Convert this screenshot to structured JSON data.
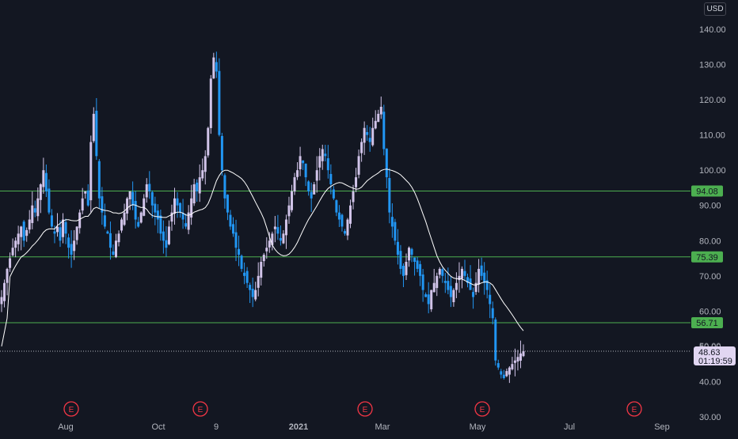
{
  "currency": "USD",
  "chart_data": {
    "type": "candlestick",
    "currency": "USD",
    "y_axis": {
      "min": 30,
      "max": 145,
      "ticks": [
        "140.00",
        "130.00",
        "120.00",
        "110.00",
        "100.00",
        "90.00",
        "80.00",
        "70.00",
        "60.00",
        "50.00",
        "40.00",
        "30.00"
      ]
    },
    "x_axis": {
      "ticks": [
        {
          "label": "Aug",
          "x_frac": 0.0
        },
        {
          "label": "Oct",
          "x_frac": 0.0
        },
        {
          "label": "9",
          "x_frac": 0.0
        },
        {
          "label": "2021",
          "x_frac": 0.0,
          "bold": true
        },
        {
          "label": "Mar",
          "x_frac": 0.0
        },
        {
          "label": "May",
          "x_frac": 0.0
        },
        {
          "label": "Jul",
          "x_frac": 0.0
        },
        {
          "label": "Sep",
          "x_frac": 0.0
        }
      ]
    },
    "horizontal_levels": [
      {
        "value": 94.08,
        "label": "94.08",
        "color": "#4caf50"
      },
      {
        "value": 75.39,
        "label": "75.39",
        "color": "#4caf50"
      },
      {
        "value": 56.71,
        "label": "56.71",
        "color": "#4caf50"
      }
    ],
    "current_price": {
      "value": 48.63,
      "label": "48.63",
      "countdown": "01:19:59",
      "axis_hint": "50.00"
    },
    "earnings_markers": [
      "E",
      "E",
      "E",
      "E",
      "E"
    ],
    "closes": [
      64,
      68,
      72,
      75,
      78,
      80,
      82,
      84,
      80,
      83,
      86,
      90,
      88,
      92,
      96,
      100,
      94,
      88,
      84,
      82,
      84,
      80,
      86,
      82,
      78,
      76,
      80,
      84,
      88,
      92,
      94,
      90,
      108,
      116,
      104,
      92,
      88,
      84,
      82,
      78,
      76,
      80,
      82,
      86,
      88,
      92,
      94,
      90,
      86,
      84,
      88,
      92,
      96,
      94,
      90,
      88,
      86,
      82,
      80,
      78,
      84,
      88,
      92,
      90,
      88,
      86,
      84,
      88,
      92,
      96,
      94,
      98,
      100,
      104,
      112,
      126,
      132,
      128,
      110,
      100,
      92,
      88,
      84,
      82,
      78,
      76,
      72,
      70,
      68,
      66,
      64,
      66,
      70,
      74,
      76,
      78,
      80,
      82,
      84,
      82,
      80,
      82,
      86,
      90,
      94,
      98,
      100,
      104,
      102,
      98,
      94,
      92,
      96,
      100,
      104,
      106,
      104,
      100,
      96,
      92,
      88,
      86,
      84,
      82,
      86,
      90,
      94,
      98,
      104,
      108,
      112,
      110,
      108,
      112,
      114,
      116,
      118,
      106,
      98,
      88,
      84,
      80,
      76,
      72,
      70,
      74,
      78,
      76,
      74,
      72,
      70,
      66,
      64,
      62,
      66,
      68,
      70,
      72,
      70,
      68,
      66,
      64,
      66,
      68,
      70,
      72,
      70,
      68,
      66,
      64,
      68,
      72,
      70,
      68,
      66,
      62,
      58,
      46,
      44,
      42,
      41,
      43,
      44,
      45,
      46,
      47,
      48,
      48.63
    ],
    "ma_period": 20,
    "x_start_frac": 0.0
  },
  "markers": {
    "symbol": "E"
  }
}
